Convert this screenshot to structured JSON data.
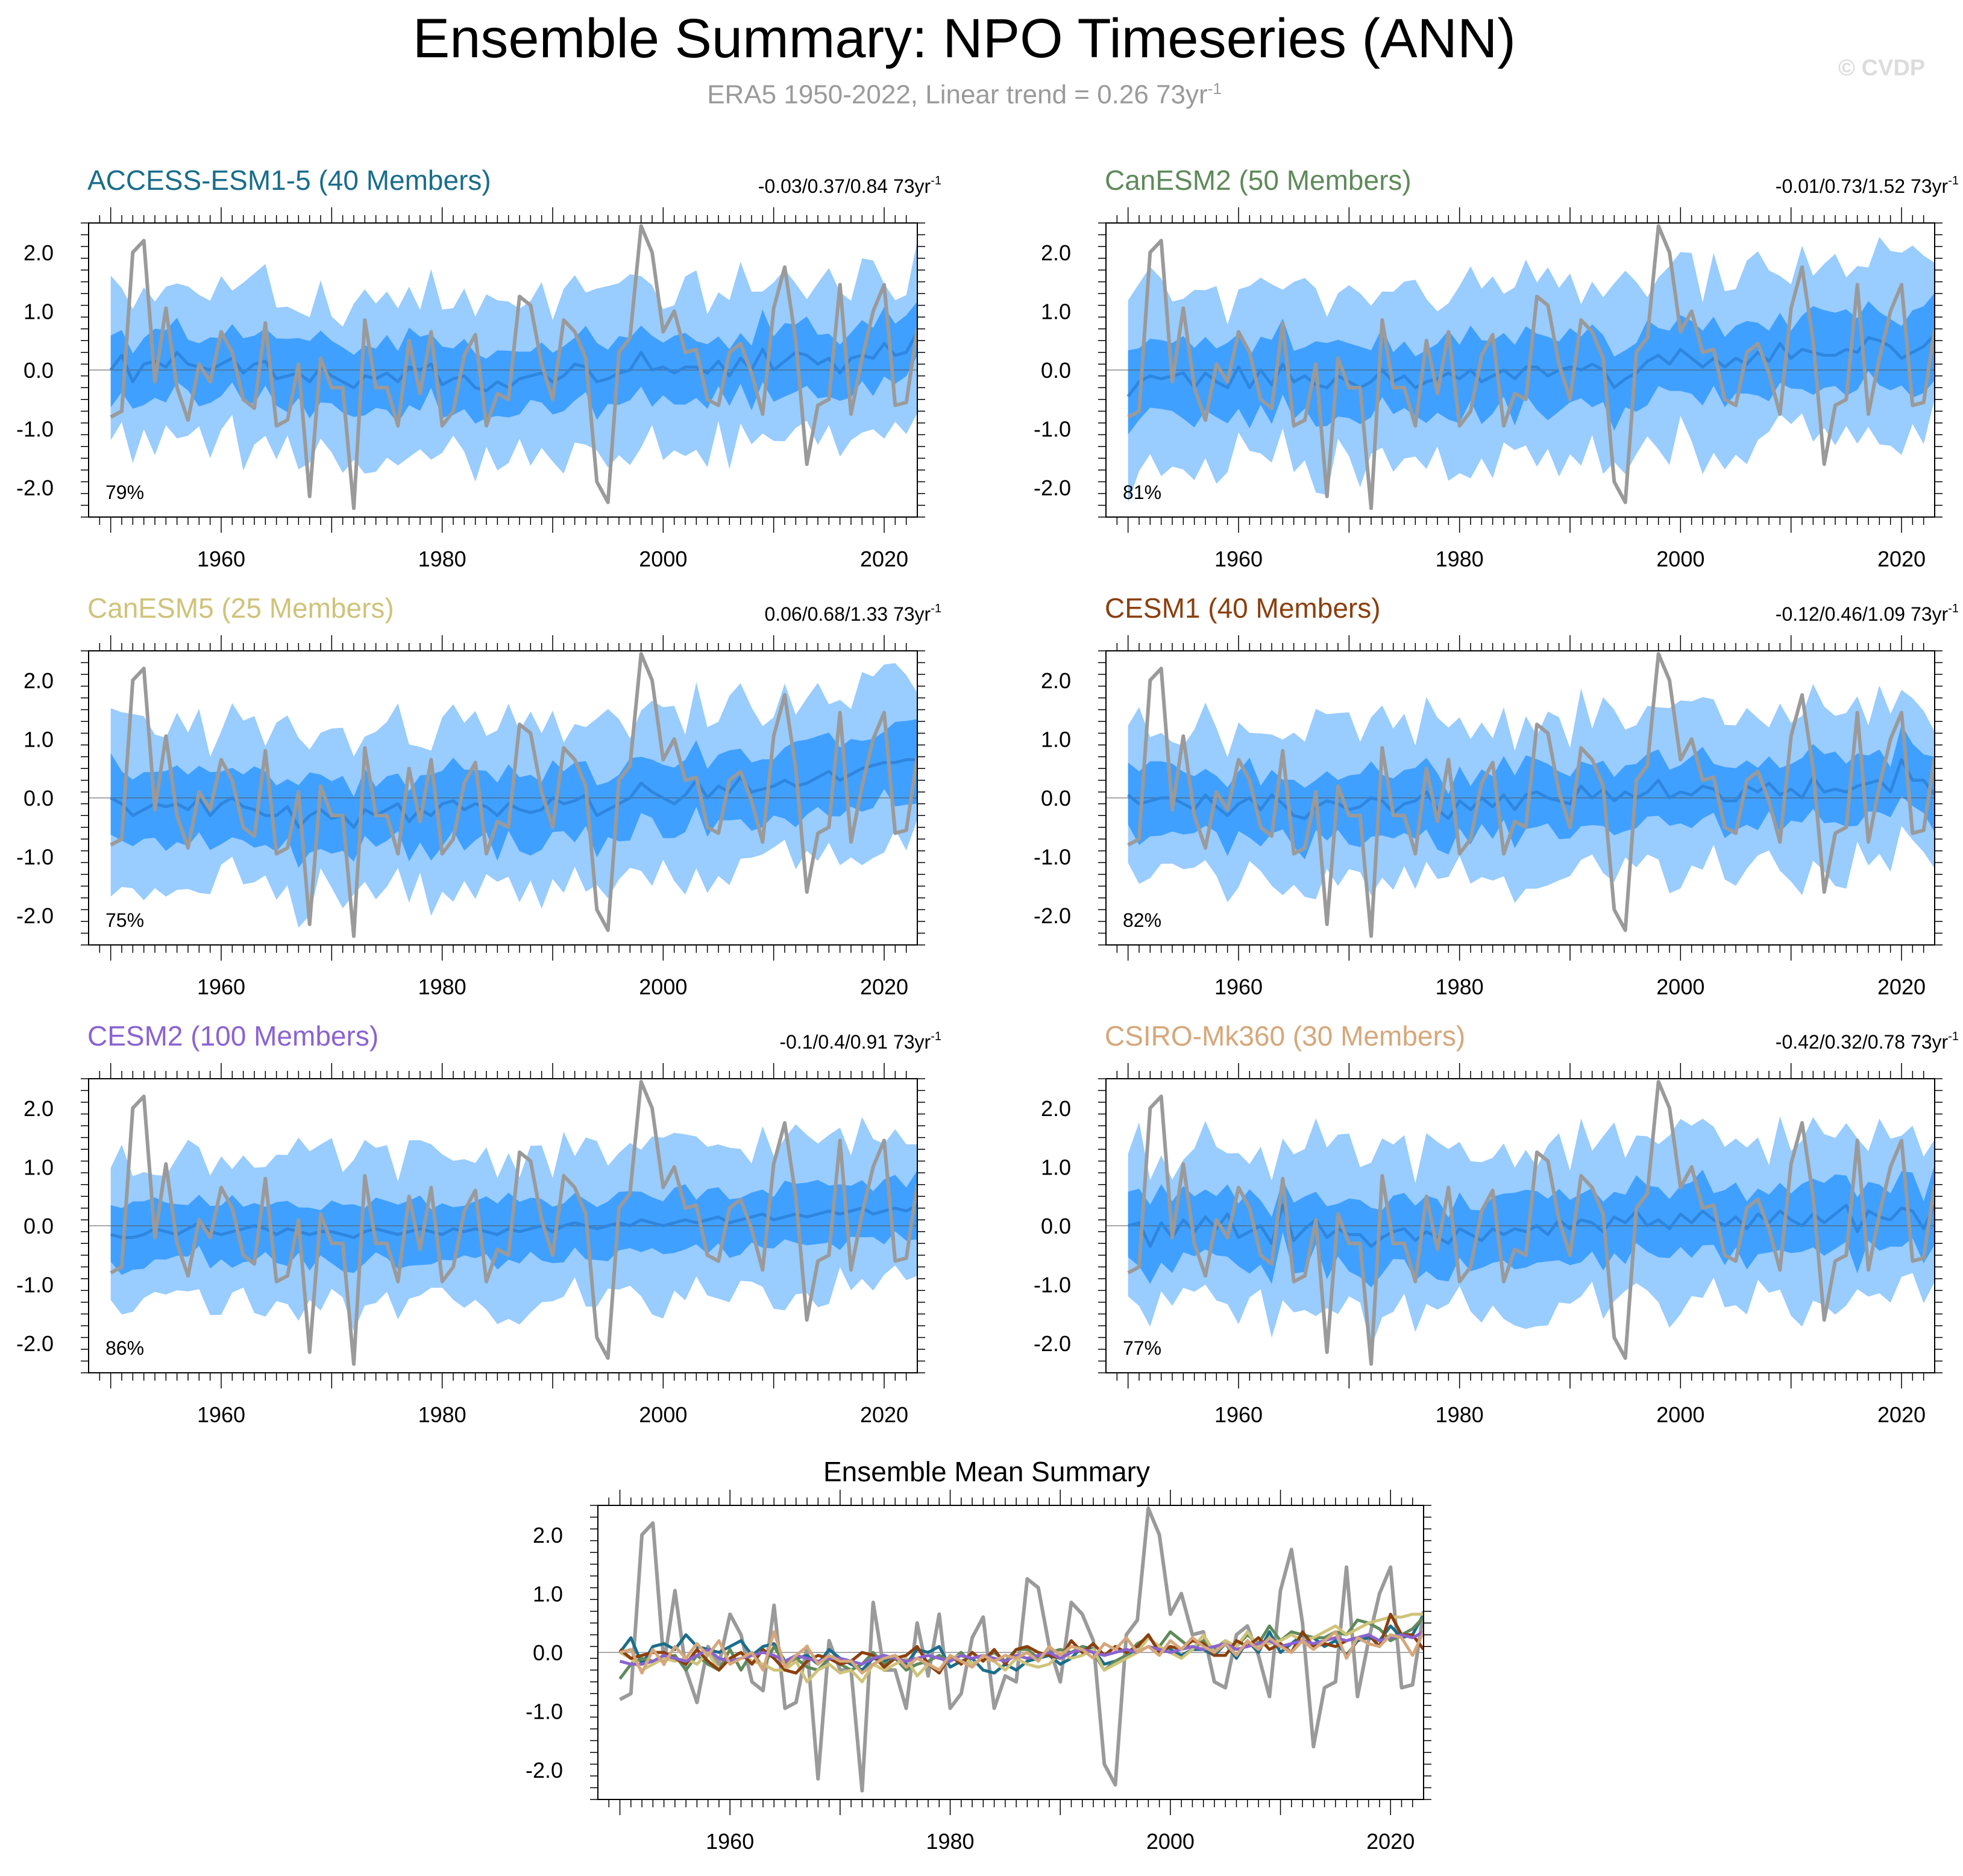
{
  "page": {
    "title": "Ensemble Summary: NPO Timeseries (ANN)",
    "subtitle_prefix": "ERA5 1950-2022, Linear trend = 0.26 73yr",
    "subtitle_exponent": "-1",
    "watermark": "© CVDP"
  },
  "colors": {
    "outer_band": "#99ccff",
    "inner_band": "#40a0ff",
    "ensemble_mean": "#2e86de",
    "obs": "#9a9a9a"
  },
  "chart_data": [
    {
      "type": "area",
      "id": "access",
      "title": "ACCESS-ESM1-5 (40 Members)",
      "title_color": "#1a6d8c",
      "trend_label": "-0.03/0.37/0.84 73yr",
      "trend_exp": "-1",
      "percent_label": "79%",
      "x_range": [
        1948,
        2023
      ],
      "ylim": [
        -2.5,
        2.5
      ],
      "yticks": [
        "2.0",
        "1.0",
        "0.0",
        "-1.0",
        "-2.0"
      ],
      "xticks": [
        "1960",
        "1980",
        "2000",
        "2020"
      ]
    },
    {
      "type": "area",
      "id": "canesm2",
      "title": "CanESM2 (50 Members)",
      "title_color": "#5e8a5a",
      "trend_label": "-0.01/0.73/1.52 73yr",
      "trend_exp": "-1",
      "percent_label": "81%",
      "x_range": [
        1948,
        2023
      ],
      "ylim": [
        -2.5,
        2.5
      ],
      "yticks": [
        "2.0",
        "1.0",
        "0.0",
        "-1.0",
        "-2.0"
      ],
      "xticks": [
        "1960",
        "1980",
        "2000",
        "2020"
      ]
    },
    {
      "type": "area",
      "id": "canesm5",
      "title": "CanESM5 (25 Members)",
      "title_color": "#cfc37a",
      "trend_label": "0.06/0.68/1.33 73yr",
      "trend_exp": "-1",
      "percent_label": "75%",
      "x_range": [
        1948,
        2023
      ],
      "ylim": [
        -2.5,
        2.5
      ],
      "yticks": [
        "2.0",
        "1.0",
        "0.0",
        "-1.0",
        "-2.0"
      ],
      "xticks": [
        "1960",
        "1980",
        "2000",
        "2020"
      ]
    },
    {
      "type": "area",
      "id": "cesm1",
      "title": "CESM1 (40 Members)",
      "title_color": "#8b3f0e",
      "trend_label": "-0.12/0.46/1.09 73yr",
      "trend_exp": "-1",
      "percent_label": "82%",
      "x_range": [
        1948,
        2023
      ],
      "ylim": [
        -2.5,
        2.5
      ],
      "yticks": [
        "2.0",
        "1.0",
        "0.0",
        "-1.0",
        "-2.0"
      ],
      "xticks": [
        "1960",
        "1980",
        "2000",
        "2020"
      ]
    },
    {
      "type": "area",
      "id": "cesm2",
      "title": "CESM2 (100 Members)",
      "title_color": "#8a63d2",
      "trend_label": "-0.1/0.4/0.91 73yr",
      "trend_exp": "-1",
      "percent_label": "86%",
      "x_range": [
        1948,
        2023
      ],
      "ylim": [
        -2.5,
        2.5
      ],
      "yticks": [
        "2.0",
        "1.0",
        "0.0",
        "-1.0",
        "-2.0"
      ],
      "xticks": [
        "1960",
        "1980",
        "2000",
        "2020"
      ]
    },
    {
      "type": "area",
      "id": "csiro",
      "title": "CSIRO-Mk360 (30 Members)",
      "title_color": "#d6a77a",
      "trend_label": "-0.42/0.32/0.78 73yr",
      "trend_exp": "-1",
      "percent_label": "77%",
      "x_range": [
        1948,
        2023
      ],
      "ylim": [
        -2.5,
        2.5
      ],
      "yticks": [
        "2.0",
        "1.0",
        "0.0",
        "-1.0",
        "-2.0"
      ],
      "xticks": [
        "1960",
        "1980",
        "2000",
        "2020"
      ]
    },
    {
      "type": "line",
      "id": "summary",
      "title": "Ensemble Mean Summary",
      "title_color": "#000000",
      "x_range": [
        1948,
        2023
      ],
      "ylim": [
        -2.5,
        2.5
      ],
      "yticks": [
        "2.0",
        "1.0",
        "0.0",
        "-1.0",
        "-2.0"
      ],
      "xticks": [
        "1960",
        "1980",
        "2000",
        "2020"
      ],
      "series": [
        {
          "name": "ACCESS-ESM1-5",
          "color": "#1a6d8c"
        },
        {
          "name": "CanESM2",
          "color": "#5e8a5a"
        },
        {
          "name": "CanESM5",
          "color": "#cfc37a"
        },
        {
          "name": "CESM1",
          "color": "#8b3f0e"
        },
        {
          "name": "CESM2",
          "color": "#8a63d2"
        },
        {
          "name": "CSIRO-Mk360",
          "color": "#d6a77a"
        }
      ]
    }
  ],
  "years_start": 1950,
  "obs_values": [
    -0.8,
    -0.7,
    2.0,
    2.2,
    -0.2,
    1.05,
    -0.3,
    -0.85,
    0.1,
    -0.2,
    0.65,
    0.3,
    -0.5,
    -0.65,
    0.8,
    -0.95,
    -0.85,
    0.1,
    -2.15,
    0.2,
    -0.3,
    -0.3,
    -2.35,
    0.85,
    -0.3,
    -0.3,
    -0.95,
    0.5,
    -0.4,
    0.65,
    -0.95,
    -0.7,
    0.25,
    0.6,
    -0.95,
    -0.4,
    -0.5,
    1.25,
    1.1,
    0.1,
    -0.5,
    0.85,
    0.65,
    0.2,
    -1.9,
    -2.25,
    0.3,
    0.55,
    2.45,
    2.0,
    0.65,
    1.0,
    0.3,
    0.35,
    -0.5,
    -0.6,
    0.3,
    0.45,
    -0.05,
    -0.75,
    1.05,
    1.75,
    0.5,
    -1.6,
    -0.6,
    -0.5,
    1.45,
    -0.75,
    0.2,
    1.0,
    1.45,
    -0.6,
    -0.55,
    0.7
  ],
  "ensemble_means": {
    "access": [
      0.0,
      0.25,
      -0.2,
      0.1,
      0.15,
      0.05,
      0.3,
      0.1,
      0.05,
      0.0,
      0.1,
      0.2,
      -0.05,
      0.1,
      0.15,
      -0.15,
      -0.1,
      -0.05,
      -0.2,
      0.05,
      -0.1,
      -0.2,
      -0.3,
      -0.1,
      -0.15,
      -0.05,
      -0.2,
      0.05,
      0.0,
      0.1,
      -0.25,
      -0.15,
      -0.1,
      -0.3,
      -0.35,
      -0.2,
      -0.3,
      -0.15,
      -0.1,
      -0.05,
      -0.2,
      -0.1,
      0.1,
      0.05,
      -0.2,
      -0.15,
      -0.05,
      0.0,
      0.3,
      0.0,
      0.05,
      -0.05,
      0.05,
      0.05,
      -0.05,
      0.15,
      -0.1,
      0.2,
      0.0,
      0.35,
      0.0,
      0.15,
      0.3,
      0.25,
      0.1,
      0.2,
      -0.05,
      0.2,
      0.25,
      0.2,
      0.45,
      0.25,
      0.3,
      0.65
    ],
    "canesm2": [
      -0.45,
      -0.2,
      -0.1,
      -0.15,
      -0.1,
      -0.05,
      -0.3,
      -0.05,
      -0.2,
      -0.3,
      0.05,
      -0.3,
      0.0,
      -0.25,
      0.1,
      -0.2,
      -0.1,
      -0.25,
      -0.3,
      -0.1,
      -0.2,
      -0.3,
      -0.2,
      0.0,
      -0.2,
      -0.1,
      -0.3,
      -0.2,
      -0.15,
      -0.05,
      -0.15,
      0.0,
      -0.2,
      -0.1,
      0.0,
      -0.15,
      0.05,
      0.05,
      -0.1,
      0.0,
      0.05,
      0.0,
      0.1,
      0.0,
      -0.3,
      -0.15,
      -0.05,
      0.15,
      0.25,
      0.1,
      0.35,
      0.2,
      0.05,
      0.2,
      0.05,
      0.2,
      0.1,
      0.3,
      0.15,
      0.45,
      0.2,
      0.35,
      0.3,
      0.25,
      0.25,
      0.35,
      0.3,
      0.55,
      0.5,
      0.4,
      0.2,
      0.3,
      0.4,
      0.6
    ],
    "canesm5": [
      0.0,
      -0.1,
      -0.3,
      -0.2,
      -0.1,
      -0.15,
      -0.1,
      -0.2,
      0.0,
      -0.3,
      -0.1,
      0.0,
      -0.15,
      -0.2,
      -0.3,
      -0.3,
      -0.15,
      -0.5,
      -0.3,
      -0.2,
      -0.35,
      -0.3,
      -0.5,
      -0.2,
      -0.3,
      -0.2,
      -0.1,
      -0.4,
      -0.2,
      -0.3,
      -0.1,
      -0.05,
      -0.2,
      -0.1,
      -0.15,
      -0.3,
      -0.1,
      -0.2,
      -0.25,
      -0.2,
      0.0,
      -0.1,
      -0.05,
      0.05,
      -0.3,
      -0.2,
      -0.1,
      0.0,
      0.25,
      0.1,
      0.0,
      -0.1,
      0.05,
      0.3,
      0.0,
      0.2,
      0.1,
      0.35,
      0.1,
      0.15,
      0.2,
      0.3,
      0.2,
      0.25,
      0.35,
      0.45,
      0.3,
      0.4,
      0.5,
      0.55,
      0.6,
      0.6,
      0.65,
      0.65
    ],
    "cesm1": [
      0.05,
      -0.1,
      -0.05,
      0.0,
      0.0,
      -0.1,
      -0.2,
      0.05,
      -0.15,
      -0.3,
      -0.1,
      0.0,
      -0.2,
      0.05,
      -0.1,
      -0.3,
      -0.35,
      -0.15,
      -0.05,
      -0.1,
      -0.2,
      -0.15,
      0.0,
      -0.05,
      -0.25,
      -0.1,
      -0.05,
      0.1,
      -0.2,
      -0.35,
      -0.05,
      -0.2,
      0.0,
      -0.15,
      0.05,
      -0.2,
      0.05,
      0.1,
      0.0,
      -0.05,
      -0.1,
      0.2,
      0.0,
      0.15,
      -0.05,
      0.1,
      0.0,
      0.1,
      0.3,
      0.0,
      0.1,
      0.05,
      0.2,
      0.15,
      -0.05,
      -0.05,
      0.2,
      0.1,
      0.25,
      0.05,
      0.15,
      0.0,
      0.35,
      0.1,
      0.15,
      0.1,
      0.2,
      0.25,
      0.3,
      0.1,
      0.65,
      0.3,
      0.3,
      0.05
    ],
    "cesm2": [
      -0.15,
      -0.2,
      -0.2,
      -0.15,
      -0.05,
      -0.1,
      -0.15,
      -0.05,
      0.05,
      -0.1,
      -0.15,
      -0.1,
      -0.05,
      0.0,
      -0.05,
      -0.15,
      -0.05,
      -0.1,
      -0.15,
      -0.1,
      -0.1,
      -0.15,
      -0.2,
      -0.1,
      -0.05,
      -0.1,
      -0.15,
      -0.1,
      -0.05,
      -0.1,
      -0.15,
      -0.05,
      -0.1,
      -0.05,
      -0.1,
      -0.15,
      -0.05,
      -0.1,
      -0.05,
      0.0,
      -0.1,
      0.0,
      0.05,
      0.0,
      -0.05,
      0.0,
      0.05,
      0.0,
      0.1,
      0.05,
      0.0,
      0.05,
      0.1,
      0.05,
      0.1,
      0.15,
      0.05,
      0.1,
      0.15,
      0.2,
      0.1,
      0.15,
      0.2,
      0.15,
      0.2,
      0.25,
      0.2,
      0.25,
      0.3,
      0.2,
      0.25,
      0.3,
      0.25,
      0.35
    ],
    "csiro": [
      0.0,
      0.05,
      -0.35,
      0.05,
      -0.2,
      0.1,
      -0.1,
      0.15,
      -0.05,
      0.2,
      -0.2,
      -0.1,
      0.0,
      -0.3,
      0.35,
      -0.25,
      -0.05,
      0.1,
      -0.2,
      -0.05,
      -0.15,
      -0.15,
      -0.35,
      -0.2,
      -0.1,
      -0.05,
      -0.25,
      -0.1,
      -0.2,
      -0.3,
      -0.05,
      -0.15,
      -0.25,
      -0.05,
      -0.15,
      -0.05,
      -0.1,
      0.0,
      -0.15,
      0.1,
      -0.05,
      0.1,
      0.05,
      -0.1,
      0.15,
      0.05,
      0.25,
      0.0,
      0.1,
      -0.05,
      0.2,
      0.05,
      0.25,
      0.1,
      0.0,
      0.15,
      -0.05,
      0.2,
      0.05,
      0.25,
      0.1,
      0.0,
      0.2,
      0.05,
      0.2,
      0.35,
      -0.1,
      0.25,
      0.15,
      0.1,
      0.3,
      0.25,
      -0.05,
      0.35
    ]
  },
  "band_width_inner": {
    "access": 0.55,
    "canesm2": 0.62,
    "canesm5": 0.6,
    "cesm1": 0.55,
    "cesm2": 0.5,
    "csiro": 0.58
  },
  "band_width_outer": {
    "access": 1.3,
    "canesm2": 1.45,
    "canesm5": 1.35,
    "cesm1": 1.3,
    "cesm2": 1.25,
    "csiro": 1.35
  }
}
